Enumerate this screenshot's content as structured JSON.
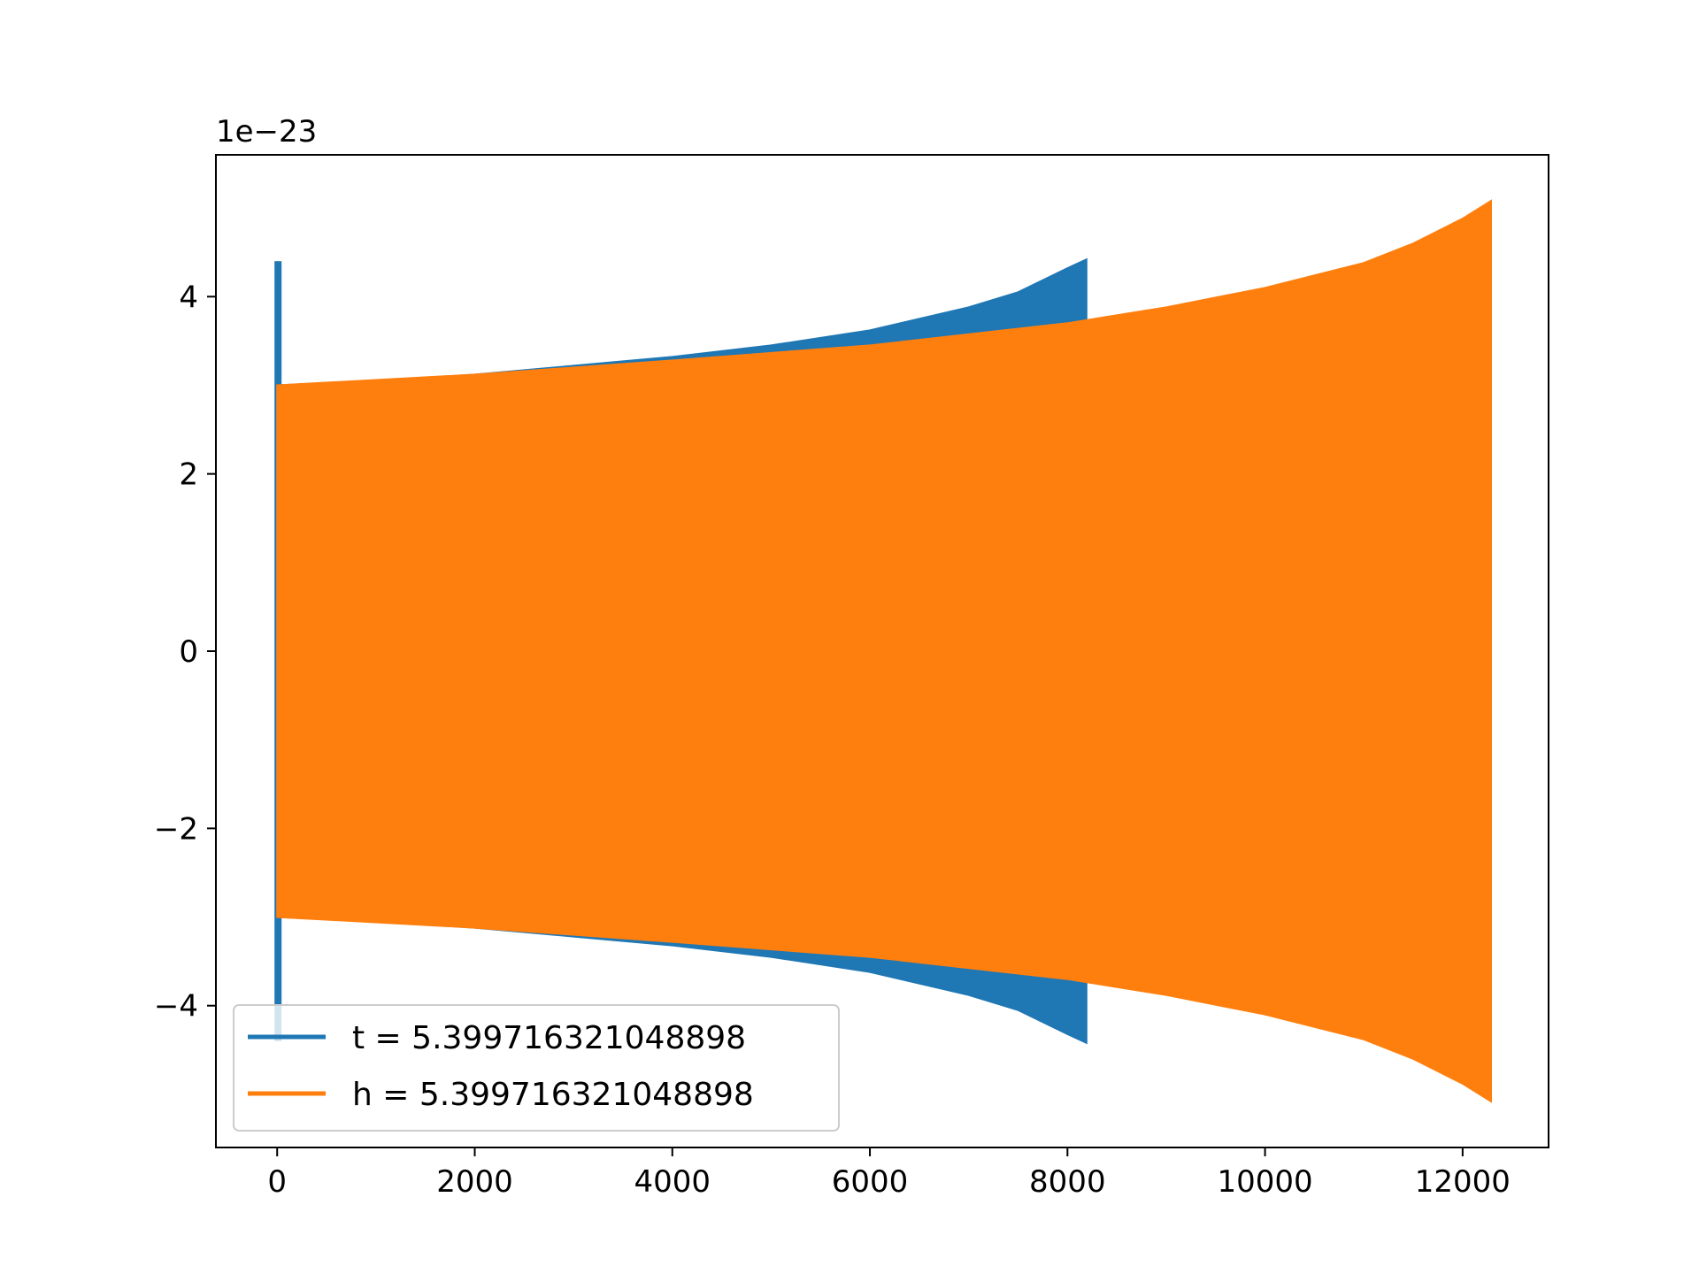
{
  "chart_data": {
    "type": "line",
    "title": "",
    "xlabel": "",
    "ylabel": "",
    "y_offset_label": "1e−23",
    "xlim": [
      -620,
      12870
    ],
    "ylim": [
      -5.6,
      5.6
    ],
    "x_ticks": [
      0,
      2000,
      4000,
      6000,
      8000,
      10000,
      12000
    ],
    "x_tick_labels": [
      "0",
      "2000",
      "4000",
      "6000",
      "8000",
      "10000",
      "12000"
    ],
    "y_ticks": [
      4,
      2,
      0,
      -2,
      -4
    ],
    "y_tick_labels": [
      "4",
      "2",
      "0",
      "−2",
      "−4"
    ],
    "grid": false,
    "legend_position": "lower-left",
    "series": [
      {
        "name": "t = 5.399716321048898",
        "color": "#1f77b4",
        "x_range": [
          0,
          8192
        ],
        "envelope": {
          "x": [
            0,
            1000,
            2000,
            3000,
            4000,
            5000,
            6000,
            7000,
            7500,
            8000,
            8192
          ],
          "upper": [
            3.0,
            3.05,
            3.12,
            3.22,
            3.32,
            3.45,
            3.62,
            3.88,
            4.05,
            4.32,
            4.42
          ],
          "lower": [
            -3.0,
            -3.05,
            -3.12,
            -3.22,
            -3.32,
            -3.45,
            -3.62,
            -3.88,
            -4.05,
            -4.32,
            -4.42
          ]
        },
        "initial_spike": {
          "x": 0,
          "max": 4.4,
          "min": -4.4
        }
      },
      {
        "name": "h = 5.399716321048898",
        "color": "#ff7f0e",
        "x_range": [
          0,
          12288
        ],
        "envelope": {
          "x": [
            0,
            2000,
            4000,
            6000,
            8000,
            9000,
            10000,
            11000,
            11500,
            12000,
            12288
          ],
          "upper": [
            3.0,
            3.12,
            3.28,
            3.45,
            3.7,
            3.88,
            4.1,
            4.38,
            4.6,
            4.88,
            5.08
          ],
          "lower": [
            -3.0,
            -3.12,
            -3.28,
            -3.45,
            -3.7,
            -3.88,
            -4.1,
            -4.38,
            -4.6,
            -4.88,
            -5.08
          ]
        }
      }
    ]
  }
}
